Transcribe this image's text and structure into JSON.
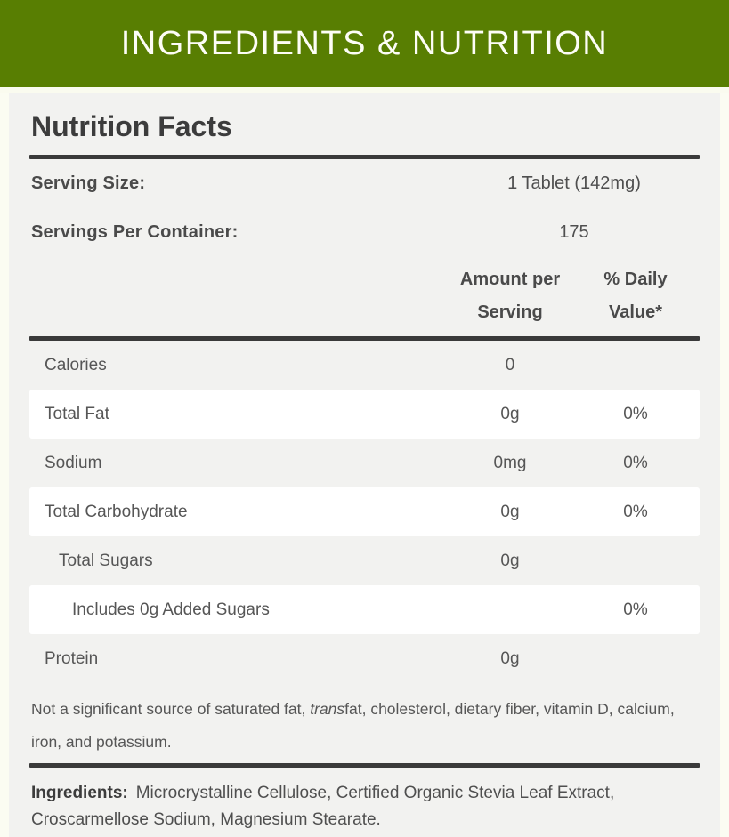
{
  "header": {
    "title": "INGREDIENTS & NUTRITION"
  },
  "panel": {
    "title": "Nutrition Facts",
    "serving_rows": [
      {
        "label": "Serving Size:",
        "value": "1 Tablet (142mg)"
      },
      {
        "label": "Servings Per Container:",
        "value": "175"
      }
    ],
    "columns": {
      "amount": "Amount per Serving",
      "dv": "% Daily Value*"
    },
    "rows": [
      {
        "label": "Calories",
        "amount": "0",
        "dv": "",
        "indent": 0
      },
      {
        "label": "Total Fat",
        "amount": "0g",
        "dv": "0%",
        "indent": 0
      },
      {
        "label": "Sodium",
        "amount": "0mg",
        "dv": "0%",
        "indent": 0
      },
      {
        "label": "Total Carbohydrate",
        "amount": "0g",
        "dv": "0%",
        "indent": 0
      },
      {
        "label": "Total Sugars",
        "amount": "0g",
        "dv": "",
        "indent": 1
      },
      {
        "label": "Includes 0g Added Sugars",
        "amount": "",
        "dv": "0%",
        "indent": 2
      },
      {
        "label": "Protein",
        "amount": "0g",
        "dv": "",
        "indent": 0
      }
    ],
    "footnote": {
      "pre": "Not a significant source of saturated fat, ",
      "italic": "trans",
      "post": "fat, cholesterol, dietary fiber, vitamin D, calcium, iron, and potassium."
    },
    "ingredients": {
      "label": "Ingredients:",
      "text": "Microcrystalline Cellulose, Certified Organic Stevia Leaf Extract, Croscarmellose Sodium, Magnesium Stearate."
    }
  },
  "colors": {
    "header_bg": "#587e02",
    "header_text": "#ffffff",
    "panel_bg": "#f2f2f0",
    "row_highlight": "#ffffff",
    "rule": "#3a3a3a"
  }
}
